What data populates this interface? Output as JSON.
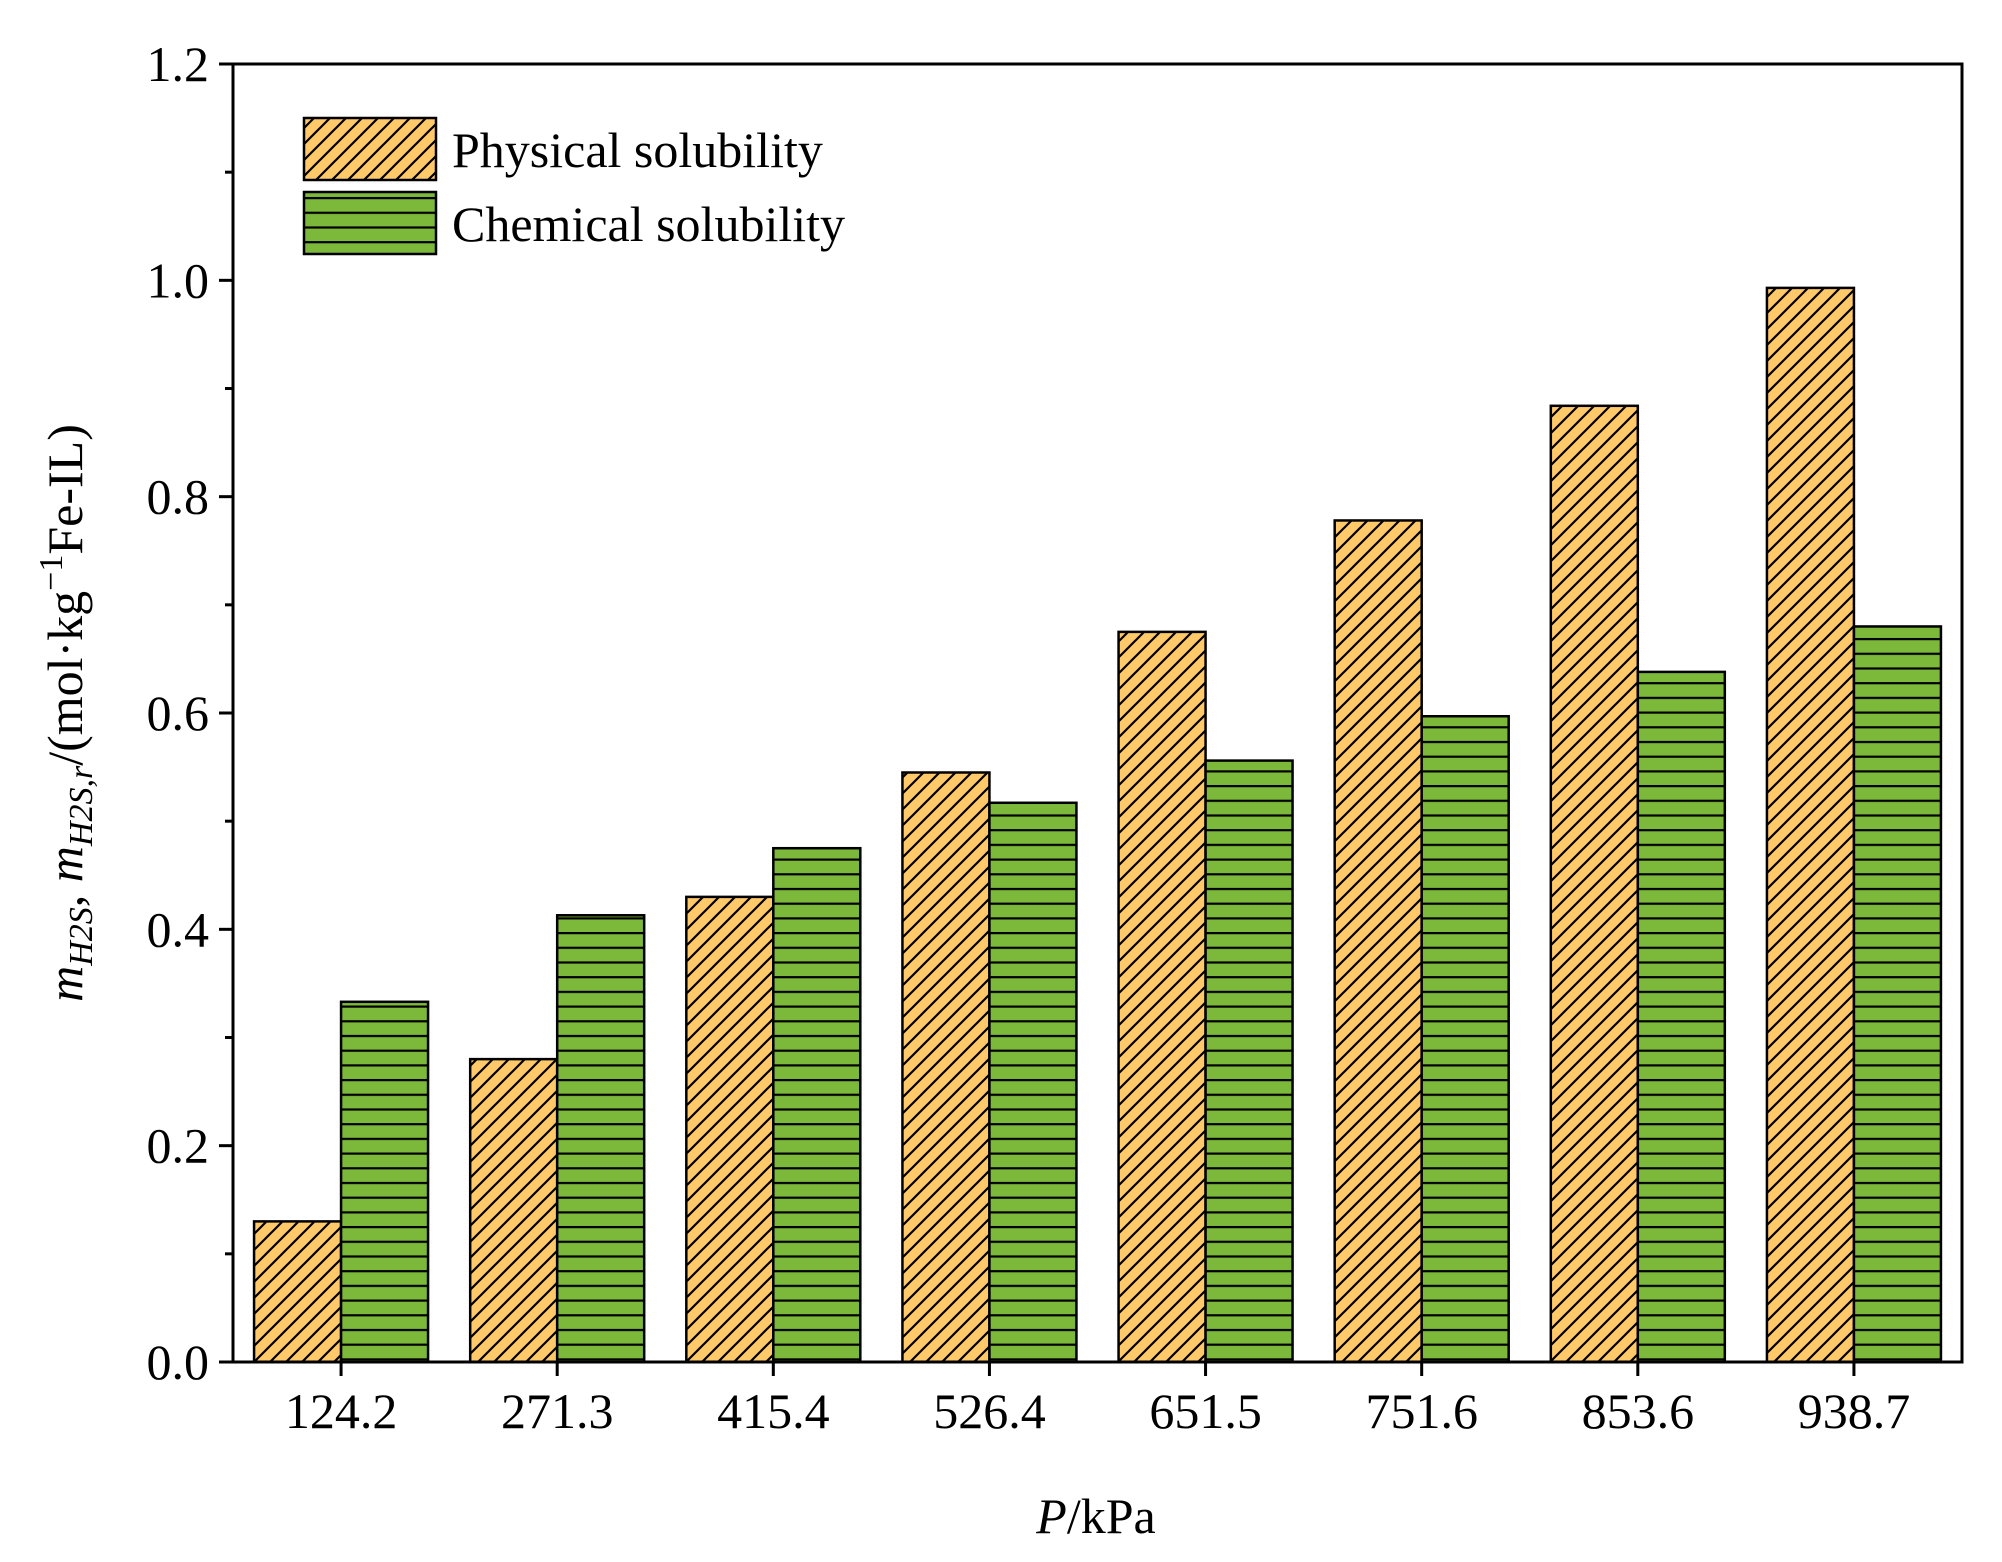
{
  "chart_data": {
    "type": "bar",
    "categories": [
      "124.2",
      "271.3",
      "415.4",
      "526.4",
      "651.5",
      "751.6",
      "853.6",
      "938.7"
    ],
    "series": [
      {
        "name": "Physical solubility",
        "values": [
          0.13,
          0.28,
          0.43,
          0.545,
          0.675,
          0.778,
          0.884,
          0.993
        ],
        "color": "#FFC96A",
        "pattern": "diagonal-hatch"
      },
      {
        "name": "Chemical solubility",
        "values": [
          0.333,
          0.413,
          0.475,
          0.517,
          0.556,
          0.597,
          0.638,
          0.68
        ],
        "color": "#7CB83A",
        "pattern": "horizontal-lines"
      }
    ],
    "xlabel_italic": "P",
    "xlabel_rest": "/kPa",
    "ylabel": {
      "m1": "m",
      "sub1": "H2S",
      "sep": ", ",
      "m2": "m",
      "sub2": "H2S,r",
      "unit_pre": "/(mol·kg",
      "sup": "−1",
      "unit_post": "Fe-IL)"
    },
    "ylim": [
      0,
      1.2
    ],
    "yticks": [
      "0.0",
      "0.2",
      "0.4",
      "0.6",
      "0.8",
      "1.0",
      "1.2"
    ],
    "legend_position": "top-left",
    "grid": false
  }
}
